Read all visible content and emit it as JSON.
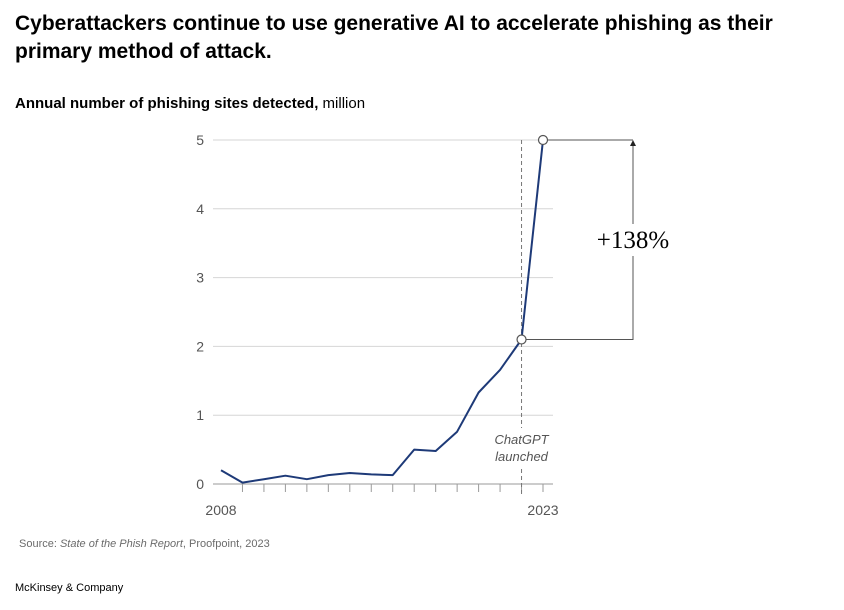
{
  "title": "Cyberattackers continue to use generative AI to accelerate phishing as their primary method of attack.",
  "subtitle": {
    "bold": "Annual number of phishing sites detected,",
    "unit": "million"
  },
  "chart_data": {
    "type": "line",
    "x": [
      2008,
      2009,
      2010,
      2011,
      2012,
      2013,
      2014,
      2015,
      2016,
      2017,
      2018,
      2019,
      2020,
      2021,
      2022,
      2023
    ],
    "series": [
      {
        "values": [
          0.2,
          0.02,
          0.07,
          0.12,
          0.07,
          0.13,
          0.16,
          0.14,
          0.13,
          0.5,
          0.48,
          0.76,
          1.33,
          1.66,
          2.1,
          5.0
        ]
      }
    ],
    "ylim": [
      0,
      5
    ],
    "yticks": [
      "0",
      "1",
      "2",
      "3",
      "4",
      "5"
    ],
    "xtick_labels": [
      "2008",
      "2023"
    ],
    "grid": true,
    "line_color": "#1e3a78",
    "event": {
      "x": 2022,
      "label_line1": "ChatGPT",
      "label_line2": "launched"
    },
    "change_annotation": {
      "from_x": 2022,
      "to_x": 2023,
      "label": "+138%"
    }
  },
  "source": {
    "prefix": "Source: ",
    "title": "State of the Phish Report",
    "suffix": ", Proofpoint, 2023"
  },
  "brand": "McKinsey & Company"
}
